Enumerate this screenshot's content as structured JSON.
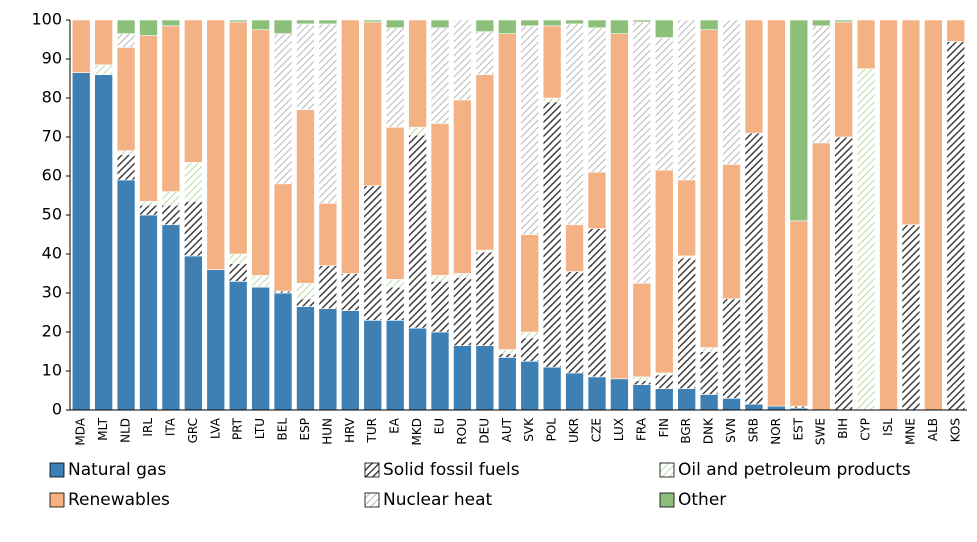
{
  "chart_data": {
    "type": "stacked_bar",
    "categories": [
      "MDA",
      "MLT",
      "NLD",
      "IRL",
      "ITA",
      "GRC",
      "LVA",
      "PRT",
      "LTU",
      "BEL",
      "ESP",
      "HUN",
      "HRV",
      "TUR",
      "EA",
      "MKD",
      "EU",
      "ROU",
      "DEU",
      "AUT",
      "SVK",
      "POL",
      "UKR",
      "CZE",
      "LUX",
      "FRA",
      "FIN",
      "BGR",
      "DNK",
      "SVN",
      "SRB",
      "NOR",
      "EST",
      "SWE",
      "BIH",
      "CYP",
      "ISL",
      "MNE",
      "ALB",
      "KOS"
    ],
    "series": [
      {
        "name": "Natural gas",
        "color": "#3e80b3",
        "pattern": "solid",
        "values": [
          86.5,
          86,
          59,
          50,
          47.5,
          39.5,
          36,
          33,
          31.5,
          30,
          26.5,
          26,
          25.5,
          23,
          23,
          21,
          20,
          16.5,
          16.5,
          13.5,
          12.5,
          11,
          9.5,
          8.5,
          8,
          6.5,
          5.5,
          5.5,
          4,
          3,
          1.5,
          1,
          0.5,
          0,
          0,
          0,
          0,
          0,
          0,
          0
        ]
      },
      {
        "name": "Solid fossil fuels",
        "color": "#404040",
        "pattern": "hatch",
        "values": [
          0,
          0,
          6.5,
          2.5,
          5,
          14,
          0,
          4.5,
          0,
          0.5,
          2,
          11,
          9.5,
          34.5,
          8.5,
          49.5,
          13,
          17.5,
          24,
          1,
          6,
          68,
          26,
          38,
          0,
          1,
          3.5,
          33.5,
          11,
          25.5,
          69.5,
          0,
          0.5,
          0,
          70,
          0,
          0,
          47.5,
          0,
          94.5
        ]
      },
      {
        "name": "Oil and petroleum products",
        "color": "#a9d18e",
        "pattern": "hatch",
        "values": [
          0,
          2.5,
          1,
          1,
          3.5,
          10,
          0,
          2.5,
          3,
          0,
          4,
          0,
          0,
          0,
          2,
          2,
          1.5,
          1,
          0.5,
          1,
          1.5,
          1,
          0,
          0,
          0,
          1,
          0.5,
          0.5,
          1,
          0,
          0,
          0,
          0,
          0,
          0,
          87.5,
          0,
          0,
          0,
          0
        ]
      },
      {
        "name": "Renewables",
        "color": "#f4b183",
        "pattern": "solid",
        "values": [
          13.5,
          11.5,
          26.5,
          42.5,
          42.5,
          36.5,
          64,
          59.5,
          63,
          27.5,
          44.5,
          16,
          65,
          42,
          39,
          27.5,
          39,
          44.5,
          45,
          81,
          25,
          18.5,
          12,
          14.5,
          88.5,
          24,
          52,
          19.5,
          81.5,
          34.5,
          29,
          99,
          47.5,
          68.5,
          29.5,
          12.5,
          100,
          52.5,
          100,
          5.5
        ]
      },
      {
        "name": "Nuclear heat",
        "color": "#a6a6a6",
        "pattern": "hatch",
        "values": [
          0,
          0,
          3.5,
          0,
          0,
          0,
          0,
          0,
          0,
          38.5,
          22,
          46,
          0,
          0,
          25.5,
          0,
          24.5,
          20.5,
          11,
          0,
          53.5,
          0,
          51.5,
          37,
          0,
          67,
          34,
          41,
          0,
          37,
          0,
          0,
          0,
          30,
          0,
          0,
          0,
          0,
          0,
          0
        ]
      },
      {
        "name": "Other",
        "color": "#8cc07a",
        "pattern": "solid",
        "values": [
          0,
          0,
          3.5,
          4,
          1.5,
          0,
          0,
          0.5,
          2.5,
          3.5,
          1,
          1,
          0,
          0.5,
          2,
          0,
          2,
          0,
          3,
          3.5,
          1.5,
          1.5,
          1,
          2,
          3.5,
          0.5,
          4.5,
          0,
          2.5,
          0,
          0,
          0,
          51.5,
          1.5,
          0.5,
          0,
          0,
          0,
          0,
          0
        ]
      }
    ],
    "ylim": [
      0,
      100
    ],
    "yticks": [
      0,
      10,
      20,
      30,
      40,
      50,
      60,
      70,
      80,
      90,
      100
    ],
    "grid": false,
    "legend": "bottom"
  }
}
